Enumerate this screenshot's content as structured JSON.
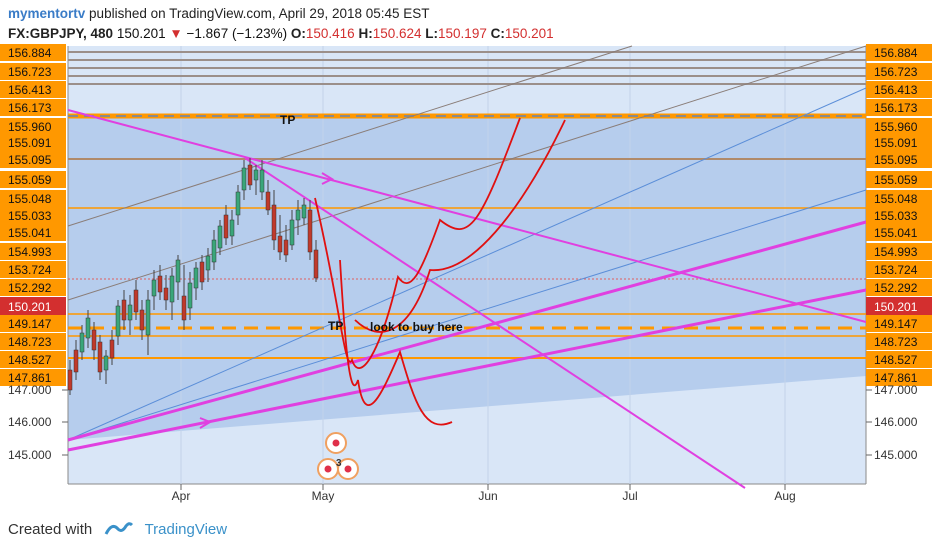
{
  "header": {
    "author": "mymentortv",
    "published_text": "published on TradingView.com, April 29, 2018 05:45 EST",
    "symbol": "FX:GBPJPY, 480",
    "price": "150.201",
    "change": "−1.867 (−1.23%)",
    "o_label": "O:",
    "o_value": "150.416",
    "h_label": "H:",
    "h_value": "150.624",
    "l_label": "L:",
    "l_value": "150.197",
    "c_label": "C:",
    "c_value": "150.201"
  },
  "footer": {
    "created_with": "Created with",
    "brand": "TradingView"
  },
  "colors": {
    "accent_orange": "#ff9800",
    "price_red": "#d32f2f",
    "trend_magenta": "#e040e0",
    "channel_blue": "#5b8ed8",
    "chart_fill": "#d9e6f7",
    "rect_fill": "#a9c4ea"
  },
  "chart_data": {
    "type": "candlestick",
    "x_ticks": [
      "Apr",
      "May",
      "Jun",
      "Jul",
      "Aug"
    ],
    "y_tick_labels": [
      "147.000",
      "146.000",
      "145.000"
    ],
    "price_level_labels": [
      "156.884",
      "156.723",
      "156.413",
      "156.173",
      "155.960",
      "155.091",
      "155.095",
      "155.059",
      "155.048",
      "155.033",
      "155.041",
      "154.993",
      "153.724",
      "152.292",
      "149.147",
      "148.723",
      "148.527",
      "147.861"
    ],
    "last_price_label": "150.201",
    "annotations": [
      {
        "type": "text",
        "text": "TP"
      },
      {
        "type": "text",
        "text": "TP"
      },
      {
        "type": "text",
        "text": "look to buy here"
      }
    ],
    "event_badge_count": "3"
  }
}
